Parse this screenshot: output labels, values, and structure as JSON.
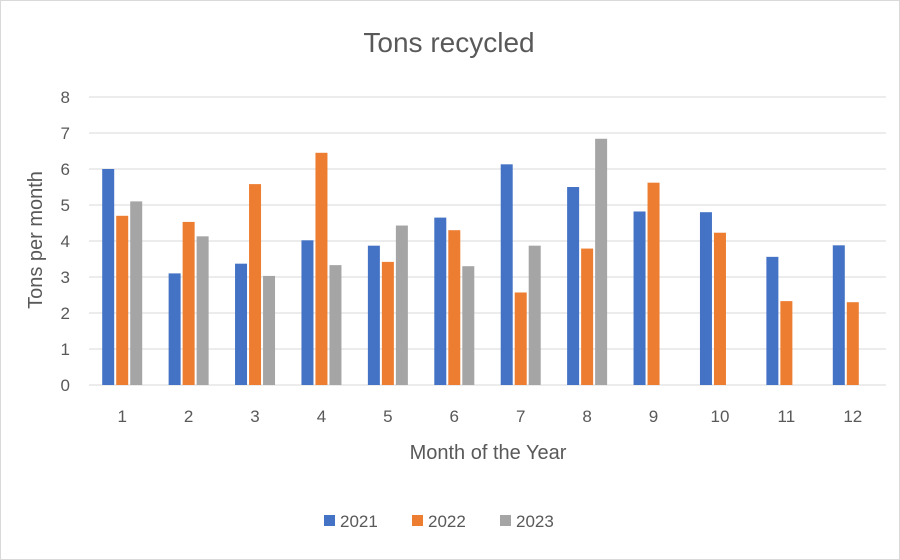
{
  "chart_data": {
    "type": "bar",
    "title": "Tons recycled",
    "xlabel": "Month of the Year",
    "ylabel": "Tons per month",
    "categories": [
      "1",
      "2",
      "3",
      "4",
      "5",
      "6",
      "7",
      "8",
      "9",
      "10",
      "11",
      "12"
    ],
    "ylim": [
      0,
      8
    ],
    "yticks": [
      "0",
      "1",
      "2",
      "3",
      "4",
      "5",
      "6",
      "7",
      "8"
    ],
    "grid": true,
    "legend_position": "bottom",
    "series": [
      {
        "name": "2021",
        "color": "#4472c4",
        "values": [
          6.0,
          3.1,
          3.37,
          4.02,
          3.87,
          4.65,
          6.13,
          5.5,
          4.82,
          4.8,
          3.56,
          3.88
        ]
      },
      {
        "name": "2022",
        "color": "#ed7d31",
        "values": [
          4.7,
          4.53,
          5.58,
          6.45,
          3.42,
          4.3,
          2.57,
          3.79,
          5.62,
          4.23,
          2.33,
          2.3
        ]
      },
      {
        "name": "2023",
        "color": "#a5a5a5",
        "values": [
          5.1,
          4.13,
          3.03,
          3.33,
          4.43,
          3.3,
          3.87,
          6.84,
          null,
          null,
          null,
          null
        ]
      }
    ]
  }
}
